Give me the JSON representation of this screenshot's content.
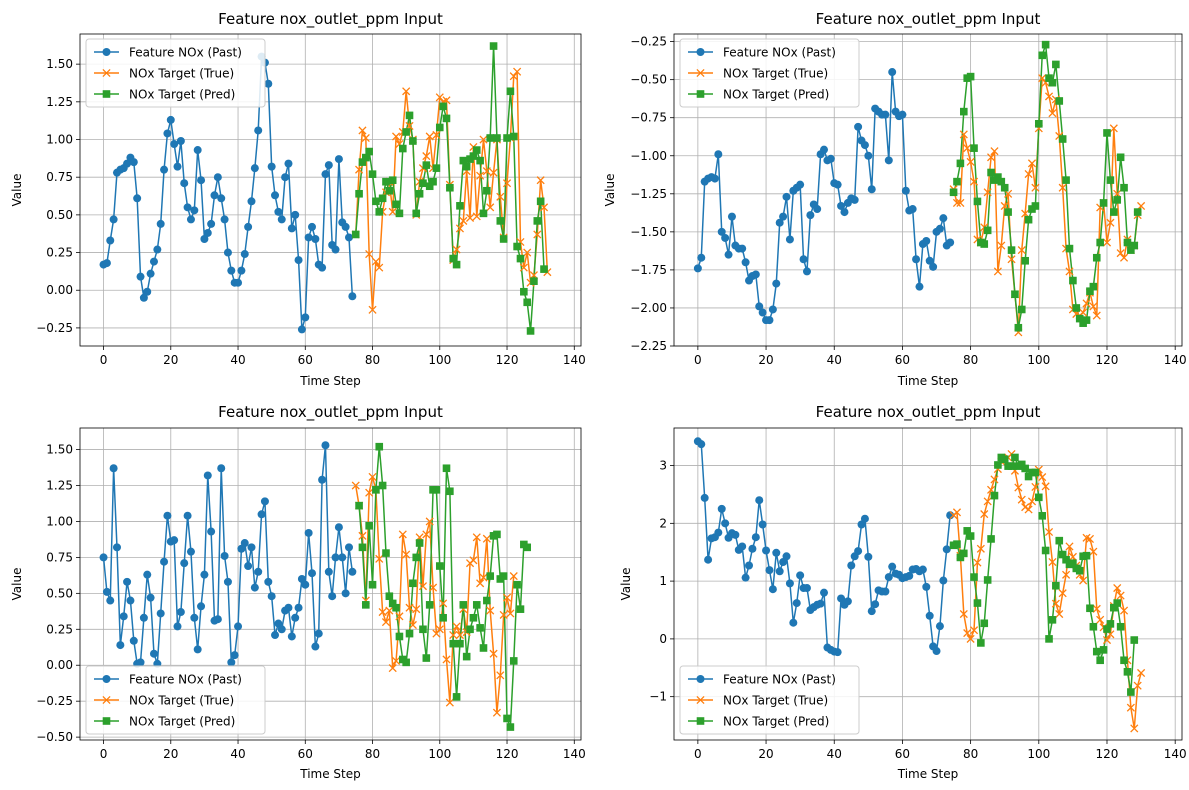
{
  "colors": {
    "past": "#1f77b4",
    "true": "#ff7f0e",
    "pred": "#2ca02c",
    "grid": "#b0b0b0",
    "axis": "#000000"
  },
  "chart_data": [
    {
      "type": "line",
      "title": "Feature nox_outlet_ppm Input",
      "xlabel": "Time Step",
      "ylabel": "Value",
      "xlim": [
        -7,
        142
      ],
      "ylim": [
        -0.37,
        1.7
      ],
      "xticks": [
        0,
        20,
        40,
        60,
        80,
        100,
        120,
        140
      ],
      "yticks": [
        -0.25,
        0.0,
        0.25,
        0.5,
        0.75,
        1.0,
        1.25,
        1.5
      ],
      "ytick_labels": [
        "−0.25",
        "0.00",
        "0.25",
        "0.50",
        "0.75",
        "1.00",
        "1.25",
        "1.50"
      ],
      "grid": true,
      "legend_position": "upper-left",
      "series": [
        {
          "name": "Feature NOx (Past)",
          "marker": "circle",
          "x_start": 0,
          "values": [
            0.17,
            0.18,
            0.33,
            0.47,
            0.78,
            0.8,
            0.81,
            0.84,
            0.88,
            0.85,
            0.61,
            0.09,
            -0.05,
            -0.01,
            0.11,
            0.19,
            0.27,
            0.44,
            0.8,
            1.04,
            1.13,
            0.97,
            0.82,
            0.99,
            0.71,
            0.55,
            0.47,
            0.53,
            0.93,
            0.73,
            0.34,
            0.38,
            0.44,
            0.63,
            0.75,
            0.61,
            0.47,
            0.25,
            0.13,
            0.05,
            0.05,
            0.13,
            0.24,
            0.42,
            0.59,
            0.81,
            1.06,
            1.55,
            1.51,
            1.37,
            0.82,
            0.63,
            0.52,
            0.47,
            0.75,
            0.84,
            0.41,
            0.5,
            0.2,
            -0.26,
            -0.18,
            0.35,
            0.42,
            0.34,
            0.17,
            0.15,
            0.77,
            0.83,
            0.3,
            0.27,
            0.87,
            0.45,
            0.42,
            0.35,
            -0.04
          ]
        },
        {
          "name": "NOx Target (True)",
          "marker": "x",
          "x_start": 75,
          "values": [
            0.37,
            0.8,
            1.06,
            1.01,
            0.24,
            -0.13,
            0.19,
            0.15,
            0.52,
            0.65,
            0.72,
            0.52,
            1.02,
            0.97,
            1.05,
            1.32,
            1.09,
            1.0,
            0.5,
            0.72,
            0.81,
            0.89,
            1.02,
            0.81,
            1.03,
            1.28,
            1.25,
            1.26,
            0.7,
            0.2,
            0.27,
            0.41,
            0.46,
            0.79,
            0.48,
            0.95,
            0.49,
            0.76,
            1.0,
            0.79,
            0.55,
            0.78,
            1.0,
            0.62,
            0.35,
            0.71,
            1.01,
            1.42,
            1.45,
            0.32,
            0.15,
            0.25,
            0.05,
            0.1,
            0.37,
            0.73,
            0.55,
            0.12
          ]
        },
        {
          "name": "NOx Target (Pred)",
          "marker": "square",
          "x_start": 75,
          "values": [
            0.37,
            0.64,
            0.85,
            0.88,
            0.92,
            0.77,
            0.59,
            0.52,
            0.61,
            0.72,
            0.66,
            0.73,
            0.57,
            0.51,
            0.94,
            1.05,
            1.16,
            0.99,
            0.51,
            0.64,
            0.71,
            0.83,
            0.69,
            0.72,
            0.81,
            1.08,
            1.22,
            1.14,
            0.68,
            0.21,
            0.17,
            0.56,
            0.86,
            0.82,
            0.87,
            0.89,
            0.93,
            0.86,
            0.51,
            0.66,
            1.01,
            1.62,
            1.01,
            0.46,
            0.34,
            1.01,
            1.32,
            1.02,
            0.29,
            0.21,
            -0.01,
            -0.08,
            -0.27,
            0.06,
            0.46,
            0.59,
            0.14
          ]
        }
      ]
    },
    {
      "type": "line",
      "title": "Feature nox_outlet_ppm Input",
      "xlabel": "Time Step",
      "ylabel": "Value",
      "xlim": [
        -7,
        142
      ],
      "ylim": [
        -2.25,
        -0.2
      ],
      "xticks": [
        0,
        20,
        40,
        60,
        80,
        100,
        120,
        140
      ],
      "yticks": [
        -2.25,
        -2.0,
        -1.75,
        -1.5,
        -1.25,
        -1.0,
        -0.75,
        -0.5,
        -0.25
      ],
      "ytick_labels": [
        "−2.25",
        "−2.00",
        "−1.75",
        "−1.50",
        "−1.25",
        "−1.00",
        "−0.75",
        "−0.50",
        "−0.25"
      ],
      "grid": true,
      "legend_position": "upper-left",
      "series": [
        {
          "name": "Feature NOx (Past)",
          "marker": "circle",
          "x_start": 0,
          "values": [
            -1.74,
            -1.67,
            -1.17,
            -1.15,
            -1.14,
            -1.15,
            -0.99,
            -1.5,
            -1.54,
            -1.65,
            -1.4,
            -1.59,
            -1.61,
            -1.61,
            -1.7,
            -1.82,
            -1.79,
            -1.78,
            -1.99,
            -2.03,
            -2.08,
            -2.08,
            -2.01,
            -1.84,
            -1.44,
            -1.4,
            -1.27,
            -1.55,
            -1.23,
            -1.21,
            -1.19,
            -1.68,
            -1.76,
            -1.39,
            -1.32,
            -1.35,
            -0.99,
            -0.96,
            -1.03,
            -1.02,
            -1.18,
            -1.19,
            -1.33,
            -1.37,
            -1.31,
            -1.28,
            -1.29,
            -0.81,
            -0.9,
            -0.93,
            -1.0,
            -1.22,
            -0.69,
            -0.71,
            -0.73,
            -0.73,
            -1.03,
            -0.45,
            -0.71,
            -0.74,
            -0.73,
            -1.23,
            -1.36,
            -1.35,
            -1.68,
            -1.86,
            -1.58,
            -1.56,
            -1.69,
            -1.73,
            -1.5,
            -1.48,
            -1.41,
            -1.59,
            -1.57
          ]
        },
        {
          "name": "NOx Target (True)",
          "marker": "x",
          "x_start": 75,
          "values": [
            -1.22,
            -1.31,
            -1.31,
            -0.86,
            -0.95,
            -1.04,
            -1.17,
            -1.55,
            -1.57,
            -1.47,
            -1.24,
            -1.01,
            -0.97,
            -1.76,
            -1.59,
            -1.33,
            -1.25,
            -1.68,
            -1.91,
            -2.16,
            -1.62,
            -1.38,
            -1.12,
            -1.05,
            -1.21,
            -0.82,
            -0.49,
            -0.52,
            -0.61,
            -0.72,
            -0.63,
            -0.87,
            -1.21,
            -1.61,
            -1.76,
            -2.01,
            -2.04,
            -2.05,
            -2.03,
            -1.97,
            -1.9,
            -1.99,
            -2.05,
            -1.34,
            -1.31,
            -1.57,
            -1.44,
            -0.82,
            -1.25,
            -1.64,
            -1.67,
            -1.55,
            -1.62,
            -1.59,
            -1.39,
            -1.33
          ]
        },
        {
          "name": "NOx Target (Pred)",
          "marker": "square",
          "x_start": 75,
          "values": [
            -1.24,
            -1.17,
            -1.05,
            -0.71,
            -0.49,
            -0.48,
            -0.95,
            -1.3,
            -1.57,
            -1.58,
            -1.49,
            -1.11,
            -1.16,
            -1.14,
            -1.17,
            -1.21,
            -1.37,
            -1.62,
            -1.91,
            -2.13,
            -2.01,
            -1.69,
            -1.42,
            -1.35,
            -1.33,
            -0.79,
            -0.34,
            -0.27,
            -0.49,
            -0.52,
            -0.4,
            -0.64,
            -0.89,
            -1.16,
            -1.61,
            -1.82,
            -2.0,
            -2.07,
            -2.1,
            -2.08,
            -1.89,
            -1.86,
            -1.67,
            -1.57,
            -1.31,
            -0.85,
            -1.16,
            -1.37,
            -1.29,
            -1.01,
            -1.21,
            -1.57,
            -1.62,
            -1.59,
            -1.37
          ]
        }
      ]
    },
    {
      "type": "line",
      "title": "Feature nox_outlet_ppm Input",
      "xlabel": "Time Step",
      "ylabel": "Value",
      "xlim": [
        -7,
        142
      ],
      "ylim": [
        -0.52,
        1.65
      ],
      "xticks": [
        0,
        20,
        40,
        60,
        80,
        100,
        120,
        140
      ],
      "yticks": [
        -0.5,
        -0.25,
        0.0,
        0.25,
        0.5,
        0.75,
        1.0,
        1.25,
        1.5
      ],
      "ytick_labels": [
        "−0.50",
        "−0.25",
        "0.00",
        "0.25",
        "0.50",
        "0.75",
        "1.00",
        "1.25",
        "1.50"
      ],
      "grid": true,
      "legend_position": "lower-left",
      "series": [
        {
          "name": "Feature NOx (Past)",
          "marker": "circle",
          "x_start": 0,
          "values": [
            0.75,
            0.51,
            0.45,
            1.37,
            0.82,
            0.14,
            0.34,
            0.58,
            0.45,
            0.17,
            0.01,
            0.02,
            0.33,
            0.63,
            0.47,
            0.08,
            0.01,
            0.36,
            0.72,
            1.04,
            0.86,
            0.87,
            0.27,
            0.37,
            0.71,
            1.04,
            0.79,
            0.33,
            0.11,
            0.41,
            0.63,
            1.32,
            0.93,
            0.31,
            0.32,
            1.37,
            0.76,
            0.58,
            0.02,
            0.07,
            0.27,
            0.81,
            0.85,
            0.69,
            0.82,
            0.54,
            0.65,
            1.05,
            1.14,
            0.58,
            0.48,
            0.21,
            0.29,
            0.25,
            0.38,
            0.4,
            0.2,
            0.33,
            0.4,
            0.6,
            0.56,
            0.92,
            0.64,
            0.13,
            0.22,
            1.29,
            1.53,
            0.65,
            0.48,
            0.75,
            0.96,
            0.75,
            0.5,
            0.82,
            0.65
          ]
        },
        {
          "name": "NOx Target (True)",
          "marker": "x",
          "x_start": 75,
          "values": [
            1.25,
            1.11,
            0.9,
            0.45,
            1.2,
            1.31,
            1.22,
            0.74,
            0.37,
            0.3,
            0.38,
            -0.02,
            0.03,
            0.34,
            0.91,
            0.77,
            0.4,
            0.28,
            0.39,
            0.89,
            0.55,
            0.91,
            1.0,
            0.54,
            0.22,
            0.25,
            0.43,
            0.04,
            -0.26,
            0.21,
            0.27,
            0.21,
            0.39,
            0.23,
            0.71,
            0.73,
            0.89,
            0.57,
            0.61,
            0.88,
            0.38,
            0.08,
            -0.33,
            -0.07,
            0.35,
            0.47,
            0.36,
            0.62
          ]
        },
        {
          "name": "NOx Target (Pred)",
          "marker": "square",
          "x_start": 76,
          "values": [
            1.11,
            0.82,
            0.42,
            0.97,
            0.56,
            1.22,
            1.52,
            1.25,
            0.78,
            0.48,
            0.43,
            0.4,
            0.2,
            0.04,
            0.02,
            0.22,
            0.57,
            0.75,
            0.85,
            0.25,
            0.05,
            0.42,
            1.22,
            1.22,
            0.69,
            0.33,
            1.37,
            1.21,
            0.15,
            -0.22,
            0.15,
            0.42,
            0.06,
            0.25,
            0.33,
            0.42,
            0.26,
            0.12,
            0.45,
            0.62,
            0.9,
            0.91,
            0.6,
            0.62,
            -0.37,
            -0.43,
            0.03,
            0.56,
            0.39,
            0.84,
            0.82
          ]
        }
      ]
    },
    {
      "type": "line",
      "title": "Feature nox_outlet_ppm Input",
      "xlabel": "Time Step",
      "ylabel": "Value",
      "xlim": [
        -7,
        142
      ],
      "ylim": [
        -1.75,
        3.65
      ],
      "xticks": [
        0,
        20,
        40,
        60,
        80,
        100,
        120,
        140
      ],
      "yticks": [
        -1,
        0,
        1,
        2,
        3
      ],
      "ytick_labels": [
        "−1",
        "0",
        "1",
        "2",
        "3"
      ],
      "grid": true,
      "legend_position": "lower-left",
      "series": [
        {
          "name": "Feature NOx (Past)",
          "marker": "circle",
          "x_start": 0,
          "values": [
            3.42,
            3.37,
            2.44,
            1.37,
            1.74,
            1.76,
            1.84,
            2.25,
            2.0,
            1.75,
            1.83,
            1.8,
            1.54,
            1.6,
            1.06,
            1.27,
            1.56,
            1.76,
            2.4,
            1.98,
            1.53,
            1.19,
            0.86,
            1.49,
            1.17,
            1.33,
            1.43,
            0.96,
            0.28,
            0.62,
            1.1,
            0.88,
            0.88,
            0.5,
            0.55,
            0.59,
            0.61,
            0.8,
            -0.15,
            -0.19,
            -0.22,
            -0.23,
            0.7,
            0.59,
            0.65,
            1.27,
            1.43,
            1.52,
            1.98,
            2.08,
            1.42,
            0.48,
            0.6,
            0.84,
            0.82,
            0.82,
            1.07,
            1.25,
            1.13,
            1.11,
            1.05,
            1.07,
            1.09,
            1.2,
            1.21,
            1.17,
            1.2,
            0.9,
            0.4,
            -0.13,
            -0.21,
            0.22,
            1.01,
            1.55,
            2.14
          ]
        },
        {
          "name": "NOx Target (True)",
          "marker": "x",
          "x_start": 75,
          "values": [
            2.14,
            2.19,
            1.44,
            0.43,
            0.1,
            0.0,
            0.15,
            1.32,
            1.56,
            2.16,
            2.38,
            2.58,
            2.76,
            2.94,
            3.07,
            3.1,
            3.14,
            3.2,
            2.91,
            2.62,
            2.41,
            2.28,
            2.24,
            2.38,
            2.63,
            2.93,
            2.8,
            2.64,
            1.85,
            1.33,
            0.61,
            0.43,
            0.79,
            1.11,
            1.6,
            1.42,
            1.27,
            1.11,
            1.01,
            1.75,
            1.73,
            1.51,
            0.52,
            0.33,
            0.2,
            -0.02,
            0.08,
            0.57,
            0.88,
            0.75,
            0.49,
            -0.37,
            -1.19,
            -1.55,
            -0.81,
            -0.59
          ]
        },
        {
          "name": "NOx Target (Pred)",
          "marker": "square",
          "x_start": 75,
          "values": [
            1.62,
            1.64,
            1.41,
            1.48,
            1.87,
            1.78,
            1.07,
            0.62,
            -0.07,
            0.27,
            1.02,
            1.73,
            2.48,
            3.01,
            3.14,
            3.11,
            2.99,
            2.99,
            3.14,
            2.99,
            3.02,
            2.95,
            2.81,
            2.88,
            2.88,
            2.45,
            2.13,
            1.53,
            0.0,
            0.33,
            0.92,
            1.7,
            1.46,
            1.37,
            1.29,
            1.31,
            1.22,
            1.18,
            1.43,
            1.44,
            0.53,
            0.21,
            -0.22,
            -0.37,
            -0.19,
            0.17,
            0.26,
            0.54,
            0.62,
            0.21,
            -0.37,
            -0.57,
            -0.92,
            -0.02
          ]
        }
      ]
    }
  ]
}
